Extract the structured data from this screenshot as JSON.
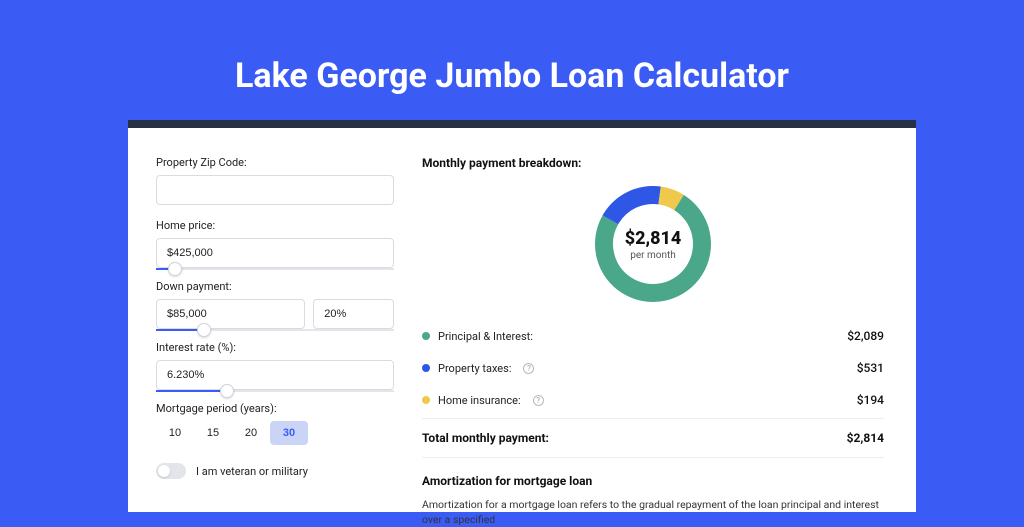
{
  "page": {
    "title": "Lake George Jumbo Loan Calculator",
    "bg_color": "#3b5bf5",
    "card_shadow_color": "#263244"
  },
  "form": {
    "zip": {
      "label": "Property Zip Code:",
      "value": ""
    },
    "home_price": {
      "label": "Home price:",
      "value": "$425,000",
      "slider_fill_pct": 8
    },
    "down_payment": {
      "label": "Down payment:",
      "amount": "$85,000",
      "percent": "20%",
      "slider_fill_pct": 20
    },
    "interest": {
      "label": "Interest rate (%):",
      "value": "6.230%",
      "slider_fill_pct": 30
    },
    "period": {
      "label": "Mortgage period (years):",
      "options": [
        "10",
        "15",
        "20",
        "30"
      ],
      "selected": "30"
    },
    "veteran": {
      "label": "I am veteran or military",
      "checked": false
    }
  },
  "breakdown": {
    "title": "Monthly payment breakdown:",
    "center_value": "$2,814",
    "center_sub": "per month",
    "donut": {
      "size": 128,
      "thickness": 18,
      "segments": [
        {
          "label": "Principal & Interest:",
          "color": "#4aa789",
          "value": "$2,089",
          "pct": 74.2
        },
        {
          "label": "Property taxes:",
          "color": "#2f57e6",
          "value": "$531",
          "pct": 18.9,
          "info": true
        },
        {
          "label": "Home insurance:",
          "color": "#efc94c",
          "value": "$194",
          "pct": 6.9,
          "info": true
        }
      ]
    },
    "total": {
      "label": "Total monthly payment:",
      "value": "$2,814"
    }
  },
  "amort": {
    "title": "Amortization for mortgage loan",
    "text": "Amortization for a mortgage loan refers to the gradual repayment of the loan principal and interest over a specified"
  }
}
